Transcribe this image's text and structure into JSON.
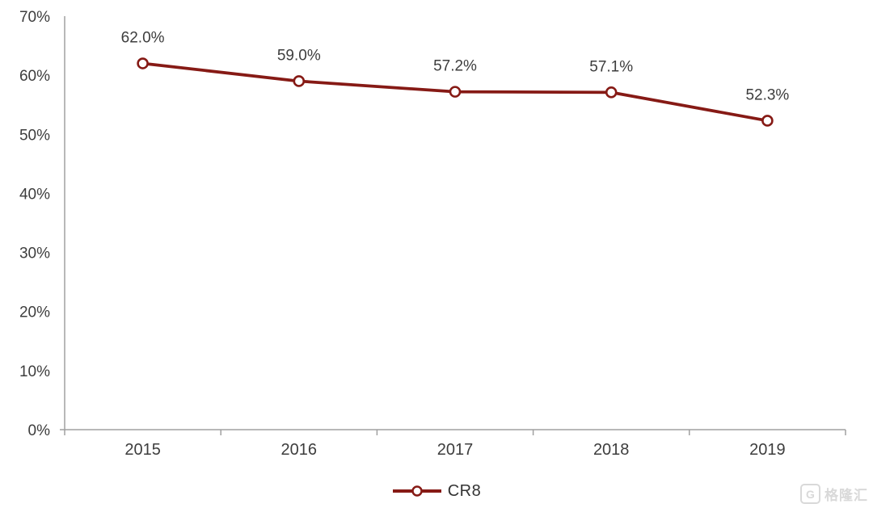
{
  "chart_data": {
    "type": "line",
    "title": "",
    "xlabel": "",
    "ylabel": "",
    "categories": [
      "2015",
      "2016",
      "2017",
      "2018",
      "2019"
    ],
    "series": [
      {
        "name": "CR8",
        "values": [
          62.0,
          59.0,
          57.2,
          57.1,
          52.3
        ]
      }
    ],
    "point_labels": [
      "62.0%",
      "59.0%",
      "57.2%",
      "57.1%",
      "52.3%"
    ],
    "ylim": [
      0,
      70
    ],
    "yticks": [
      {
        "value": 0,
        "label": "0%"
      },
      {
        "value": 10,
        "label": "10%"
      },
      {
        "value": 20,
        "label": "20%"
      },
      {
        "value": 30,
        "label": "30%"
      },
      {
        "value": 40,
        "label": "40%"
      },
      {
        "value": 50,
        "label": "50%"
      },
      {
        "value": 60,
        "label": "60%"
      },
      {
        "value": 70,
        "label": "70%"
      }
    ],
    "grid": false,
    "legend_position": "bottom-center",
    "colors": {
      "line": "#861A15",
      "marker_fill": "#FFFFFF",
      "axis": "#A0A0A0",
      "text": "#3D3D3D"
    }
  },
  "watermark": {
    "text": "格隆汇",
    "logo_letter": "G"
  }
}
